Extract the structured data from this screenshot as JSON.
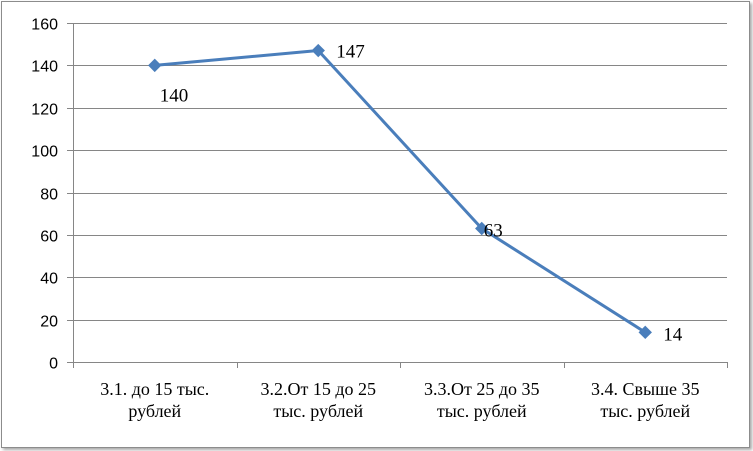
{
  "chart_data": {
    "type": "line",
    "categories": [
      [
        "3.1. до 15 тыс.",
        "рублей"
      ],
      [
        "3.2.От 15 до 25",
        "тыс. рублей"
      ],
      [
        "3.3.От 25 до 35",
        "тыс. рублей"
      ],
      [
        "3.4. Свыше 35",
        "тыс. рублей"
      ]
    ],
    "series": [
      {
        "values": [
          140,
          147,
          63,
          14
        ],
        "color": "#4a7ebb"
      }
    ],
    "ylim": [
      0,
      160
    ],
    "yticks": [
      0,
      20,
      40,
      60,
      80,
      100,
      120,
      140,
      160
    ],
    "data_labels": [
      "140",
      "147",
      "63",
      "14"
    ],
    "grid": "horizontal",
    "marker": "diamond",
    "title": "",
    "xlabel": "",
    "ylabel": ""
  }
}
